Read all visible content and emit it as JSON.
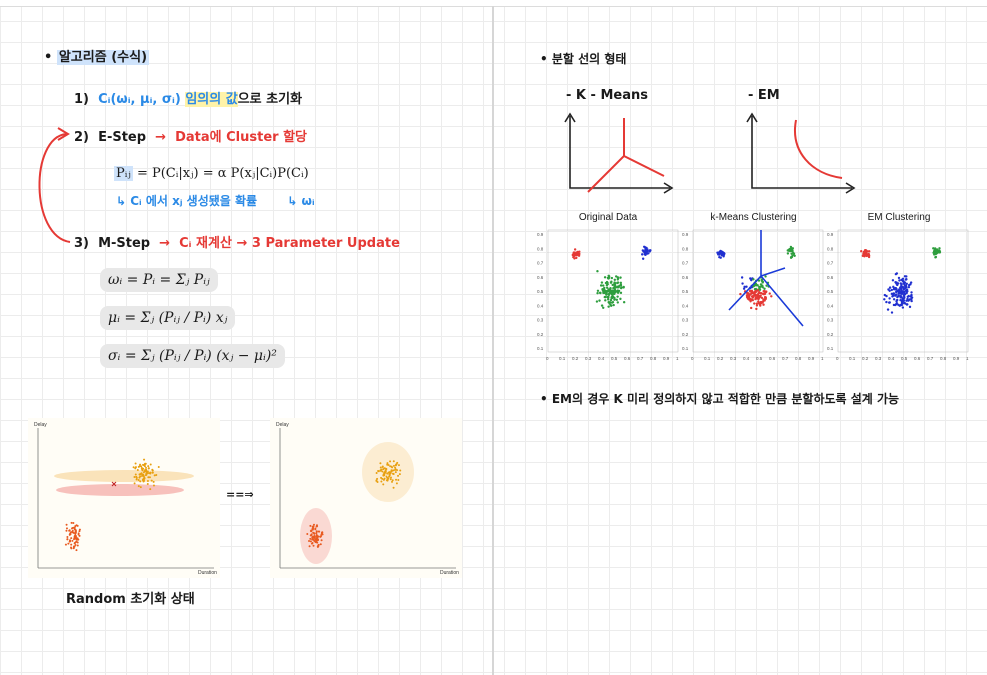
{
  "left": {
    "bullet_title": "알고리즘 (수식)",
    "step1_num": "1)",
    "step1_expr": "Cᵢ(ωᵢ, μᵢ, σᵢ)",
    "step1_text": "임의의 값",
    "step1_tail": "으로 초기화",
    "step2_num": "2)",
    "step2_label": "E-Step",
    "step2_arrow": "→",
    "step2_desc": "Data에 Cluster 할당",
    "estep_formula_p": "Pᵢⱼ",
    "estep_formula_rest": "= P(Cᵢ|xⱼ) = α P(xⱼ|Cᵢ)P(Cᵢ)",
    "estep_note": "Cᵢ 에서 xⱼ 생성됐을 확률",
    "estep_note2": "ωᵢ",
    "step3_num": "3)",
    "step3_label": "M-Step",
    "step3_arrow": "→",
    "step3_desc": "Cᵢ 재계산 → 3 Parameter Update",
    "mstep_formulas": [
      "ωᵢ = Pᵢ = Σⱼ Pᵢⱼ",
      "μᵢ = Σⱼ (Pᵢⱼ / Pᵢ) xⱼ",
      "σᵢ = Σⱼ (Pᵢⱼ / Pᵢ) (xⱼ − μᵢ)²"
    ],
    "plot_ylabel": "Delay",
    "plot_xlabel": "Duration",
    "arrow_between": "==⇒",
    "caption": "Random 초기화 상태"
  },
  "right": {
    "bullet_title": "분할 선의 형태",
    "kmeans_label": "- K - Means",
    "em_label": "- EM",
    "chart_titles": [
      "Original Data",
      "k-Means Clustering",
      "EM Clustering"
    ],
    "yticks": [
      "0.9",
      "0.8",
      "0.7",
      "0.6",
      "0.5",
      "0.4",
      "0.3",
      "0.2",
      "0.1"
    ],
    "xticks": [
      "0",
      "0.1",
      "0.2",
      "0.3",
      "0.4",
      "0.5",
      "0.6",
      "0.7",
      "0.8",
      "0.9",
      "1"
    ],
    "note": "EM의 경우 K 미리 정의하지 않고 적합한 만큼 분할하도록 설계 가능"
  },
  "colors": {
    "blue": "#2b8ae6",
    "red": "#e53935",
    "highlight": "#cfe3fb",
    "cluster_red": "#e53935",
    "cluster_green": "#2e9e3e",
    "cluster_blue": "#2030d0",
    "cluster_orange": "#f0a830"
  }
}
